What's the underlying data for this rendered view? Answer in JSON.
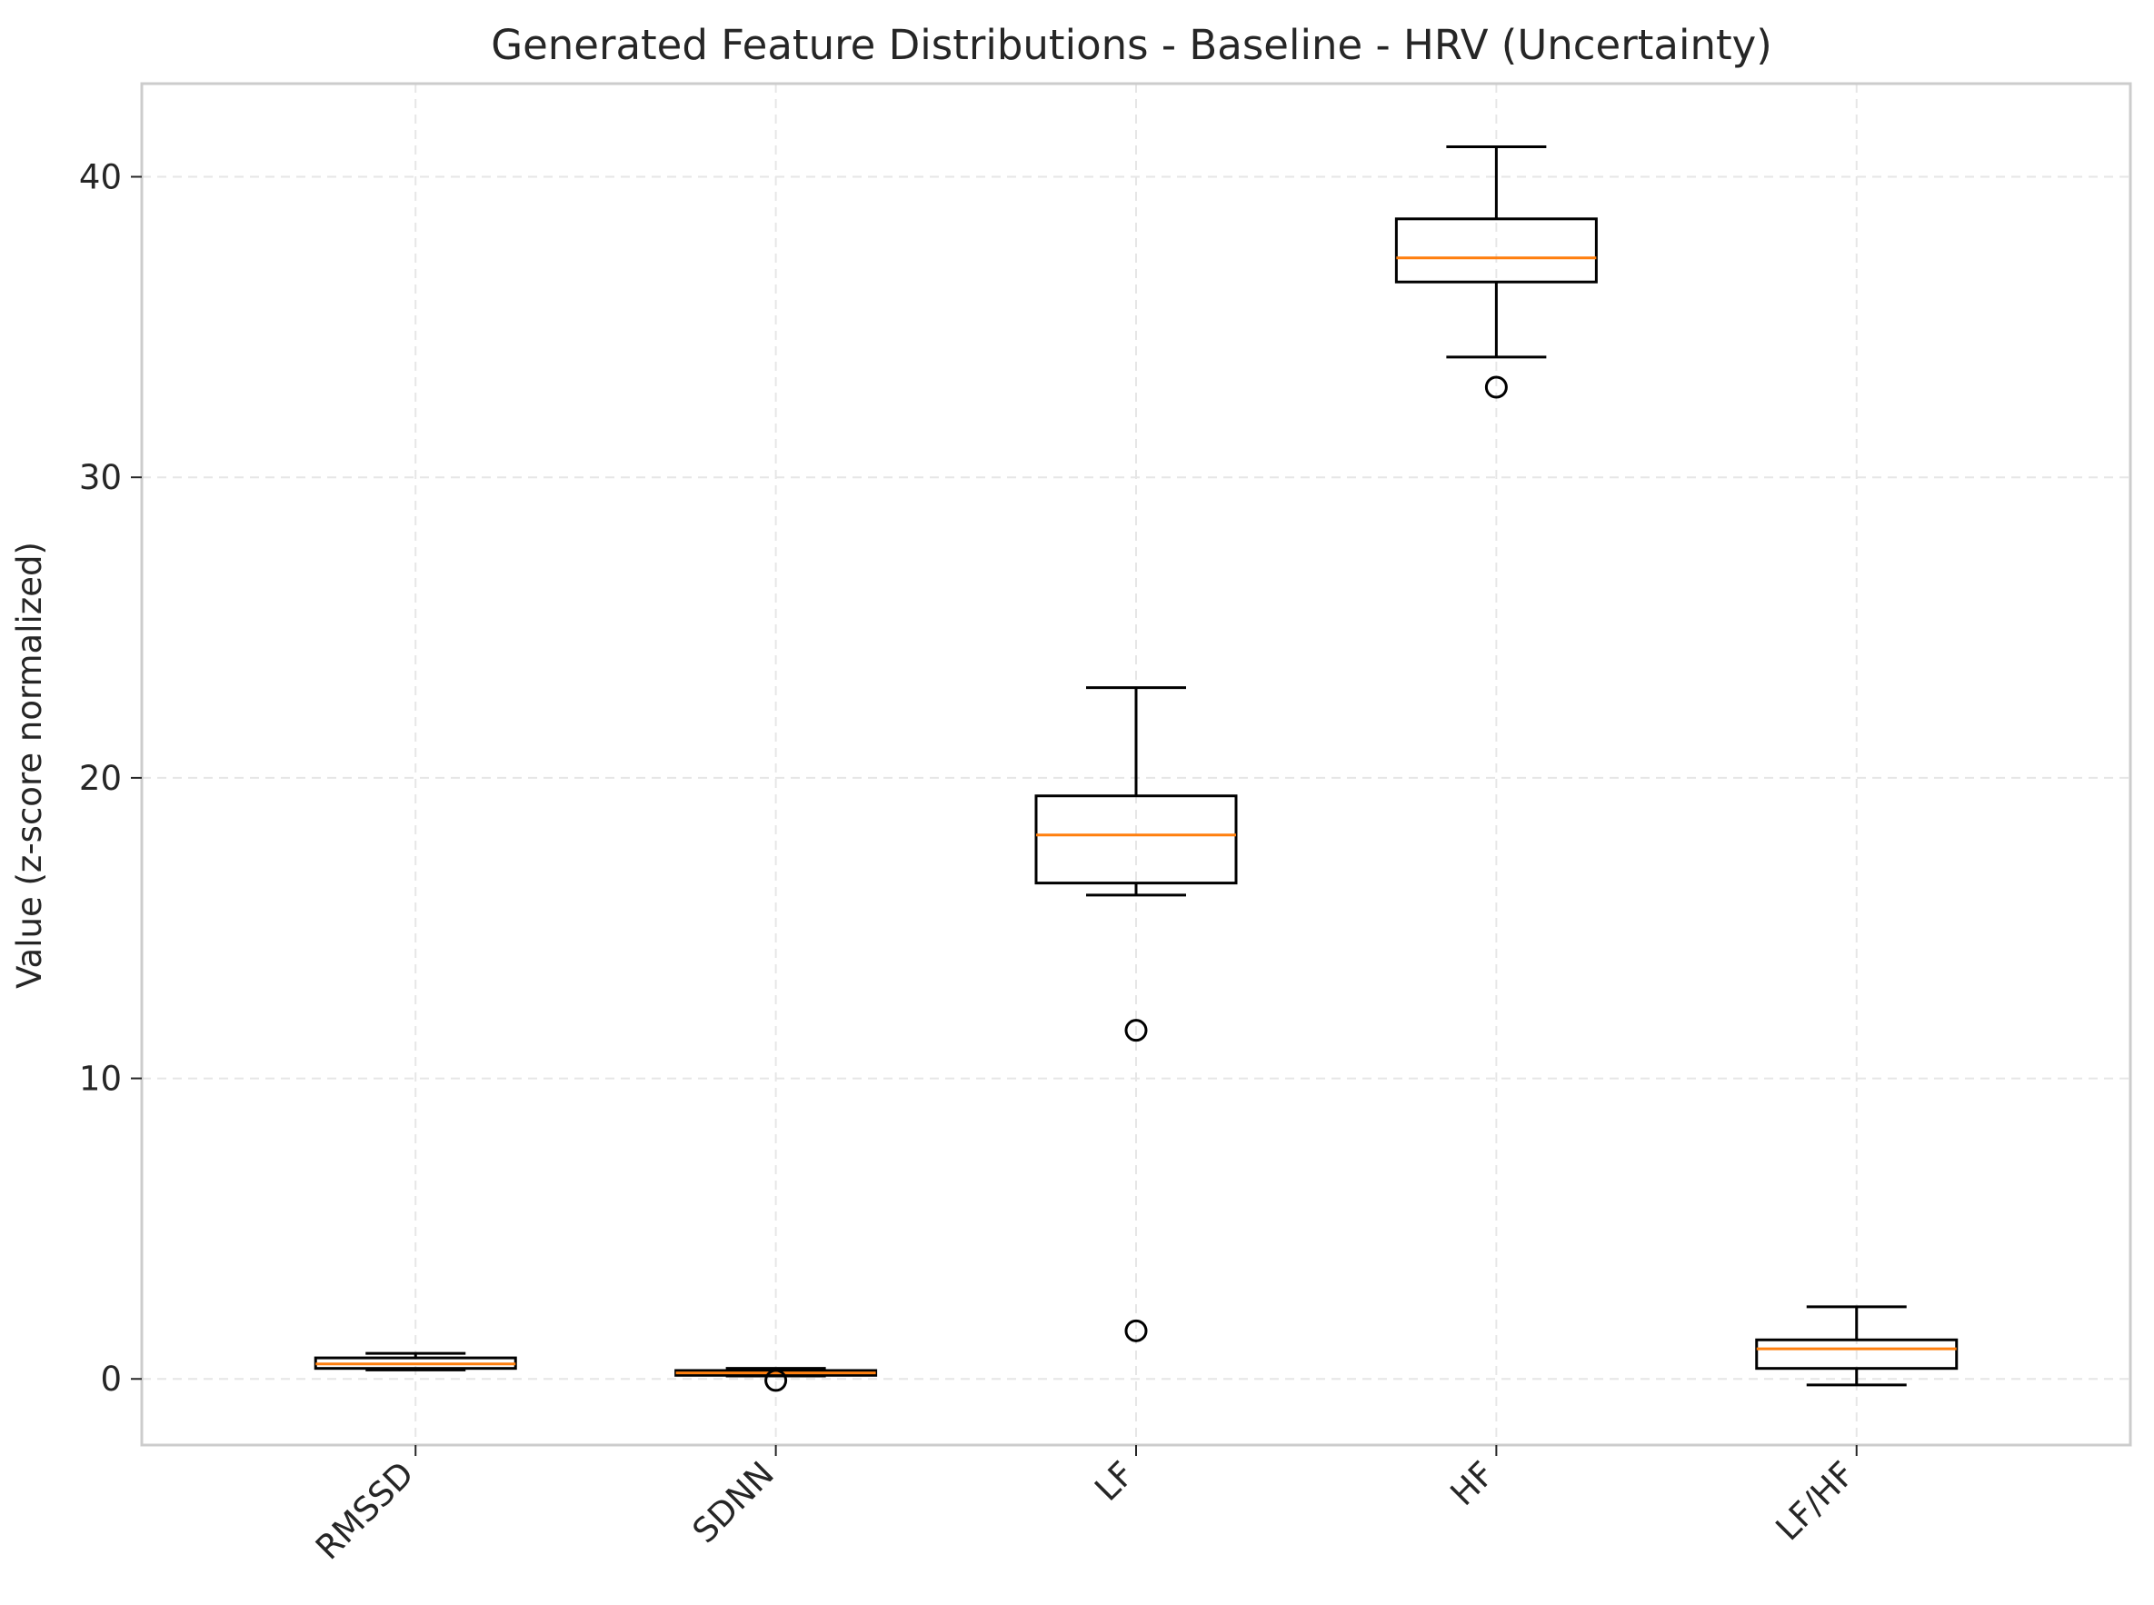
{
  "chart_data": {
    "type": "box",
    "title": "Generated Feature Distributions - Baseline - HRV (Uncertainty)",
    "xlabel": "",
    "ylabel": "Value (z-score normalized)",
    "categories": [
      "RMSSD",
      "SDNN",
      "LF",
      "HF",
      "LF/HF"
    ],
    "ylim": [
      -2.2,
      43.1
    ],
    "yticks": [
      0,
      10,
      20,
      30,
      40
    ],
    "grid": true,
    "colors": {
      "box": "#000000",
      "median": "#ff7f0e",
      "grid": "#e6e6e6",
      "spine": "#cccccc"
    },
    "boxes": [
      {
        "label": "RMSSD",
        "whisker_low": 0.3,
        "q1": 0.35,
        "median": 0.5,
        "q3": 0.7,
        "whisker_high": 0.85,
        "outliers": []
      },
      {
        "label": "SDNN",
        "whisker_low": 0.1,
        "q1": 0.12,
        "median": 0.2,
        "q3": 0.28,
        "whisker_high": 0.35,
        "outliers": [
          -0.05
        ]
      },
      {
        "label": "LF",
        "whisker_low": 16.1,
        "q1": 16.5,
        "median": 18.1,
        "q3": 19.4,
        "whisker_high": 23.0,
        "outliers": [
          11.6,
          1.6
        ]
      },
      {
        "label": "HF",
        "whisker_low": 34.0,
        "q1": 36.5,
        "median": 37.3,
        "q3": 38.6,
        "whisker_high": 41.0,
        "outliers": [
          33.0
        ]
      },
      {
        "label": "LF/HF",
        "whisker_low": -0.2,
        "q1": 0.35,
        "median": 1.0,
        "q3": 1.3,
        "whisker_high": 2.4,
        "outliers": []
      }
    ]
  }
}
